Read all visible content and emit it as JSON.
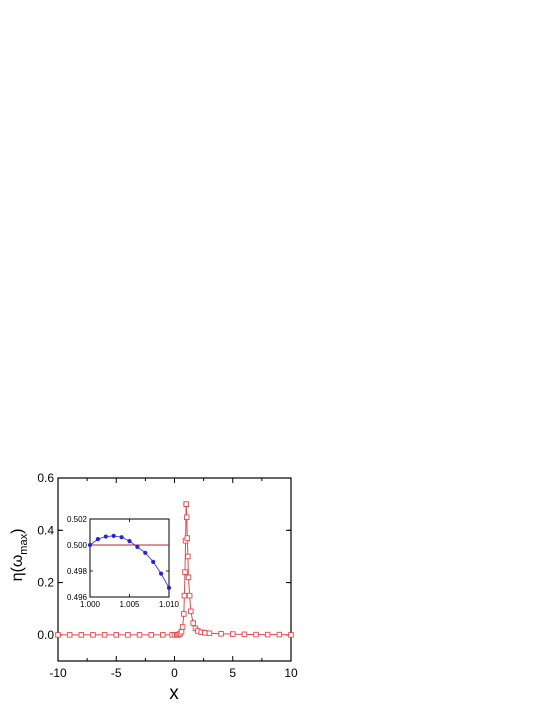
{
  "chart_data": [
    {
      "type": "line",
      "title": "",
      "xlabel": "x",
      "ylabel_main": "η(ω",
      "ylabel_sub": "max",
      "ylabel_tail": ")",
      "xlim": [
        -10,
        10
      ],
      "ylim": [
        -0.1,
        0.6
      ],
      "xticks": [
        -10,
        -5,
        0,
        5,
        10
      ],
      "xtick_labels": [
        "-10",
        "-5",
        "0",
        "5",
        "10"
      ],
      "yticks": [
        0.0,
        0.2,
        0.4,
        0.6
      ],
      "ytick_labels": [
        "0.0",
        "0.2",
        "0.4",
        "0.6"
      ],
      "grid": false,
      "series": [
        {
          "marker": "open-square",
          "color": "#e8464b",
          "points": [
            [
              -10,
              0.0
            ],
            [
              -9,
              0.0
            ],
            [
              -8,
              0.0
            ],
            [
              -7,
              0.0
            ],
            [
              -6,
              0.0
            ],
            [
              -5,
              0.0
            ],
            [
              -4,
              0.0
            ],
            [
              -3,
              0.0
            ],
            [
              -2,
              0.0
            ],
            [
              -1,
              0.0
            ],
            [
              -0.2,
              0.0
            ],
            [
              0.0,
              0.0
            ],
            [
              0.2,
              0.0
            ],
            [
              0.3,
              0.0
            ],
            [
              0.4,
              0.002
            ],
            [
              0.5,
              0.005
            ],
            [
              0.6,
              0.012
            ],
            [
              0.7,
              0.03
            ],
            [
              0.8,
              0.08
            ],
            [
              0.85,
              0.15
            ],
            [
              0.9,
              0.24
            ],
            [
              0.95,
              0.36
            ],
            [
              1.0,
              0.5
            ],
            [
              1.01,
              0.5
            ],
            [
              1.05,
              0.45
            ],
            [
              1.1,
              0.37
            ],
            [
              1.15,
              0.3
            ],
            [
              1.2,
              0.22
            ],
            [
              1.3,
              0.15
            ],
            [
              1.4,
              0.09
            ],
            [
              1.6,
              0.045
            ],
            [
              1.8,
              0.025
            ],
            [
              2.0,
              0.015
            ],
            [
              2.3,
              0.01
            ],
            [
              2.6,
              0.008
            ],
            [
              3,
              0.006
            ],
            [
              4,
              0.004
            ],
            [
              5,
              0.003
            ],
            [
              6,
              0.002
            ],
            [
              7,
              0.001
            ],
            [
              8,
              0.001
            ],
            [
              9,
              0.001
            ],
            [
              10,
              0.0
            ]
          ]
        }
      ]
    },
    {
      "type": "line",
      "title": "",
      "inset": true,
      "xlim": [
        1.0,
        1.01
      ],
      "ylim": [
        0.496,
        0.502
      ],
      "xticks": [
        1.0,
        1.005,
        1.01
      ],
      "xtick_labels": [
        "1.000",
        "1.005",
        "1.010"
      ],
      "yticks": [
        0.496,
        0.498,
        0.5,
        0.502
      ],
      "ytick_labels": [
        "0.496",
        "0.498",
        "0.500",
        "0.502"
      ],
      "reference_line": 0.5,
      "reference_color": "#b1272d",
      "series": [
        {
          "marker": "filled-circle",
          "color": "#2424d6",
          "points": [
            [
              1.0,
              0.5
            ],
            [
              1.001,
              0.50045
            ],
            [
              1.002,
              0.50065
            ],
            [
              1.003,
              0.5007
            ],
            [
              1.004,
              0.5006
            ],
            [
              1.005,
              0.5003
            ],
            [
              1.006,
              0.49985
            ],
            [
              1.007,
              0.4994
            ],
            [
              1.008,
              0.4987
            ],
            [
              1.009,
              0.4978
            ],
            [
              1.01,
              0.4967
            ]
          ]
        }
      ]
    }
  ]
}
